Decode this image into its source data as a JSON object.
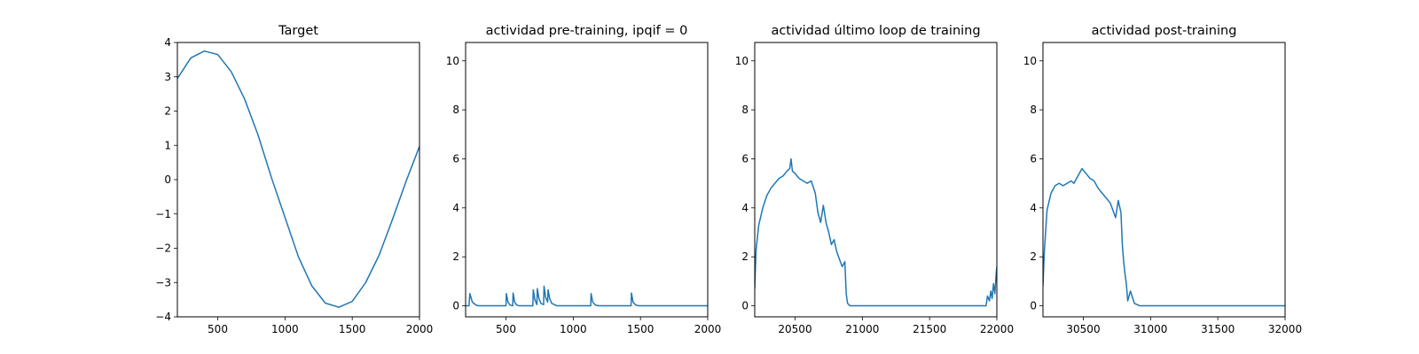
{
  "chart_data": [
    {
      "type": "line",
      "title": "Target",
      "xlim": [
        200,
        2000
      ],
      "ylim": [
        -4,
        4
      ],
      "xticks": [
        500,
        1000,
        1500,
        2000
      ],
      "yticks": [
        -4,
        -3,
        -2,
        -1,
        0,
        1,
        2,
        3,
        4
      ],
      "xtick_labels": [
        "500",
        "1000",
        "1500",
        "2000"
      ],
      "ytick_labels": [
        "−4",
        "−3",
        "−2",
        "−1",
        "0",
        "1",
        "2",
        "3",
        "4"
      ],
      "series": [
        {
          "color": "#1f77b4",
          "x": [
            200,
            300,
            400,
            500,
            600,
            700,
            800,
            900,
            1000,
            1100,
            1200,
            1300,
            1400,
            1500,
            1600,
            1700,
            1800,
            1900,
            2000
          ],
          "y": [
            2.95,
            3.55,
            3.75,
            3.65,
            3.15,
            2.35,
            1.3,
            0.05,
            -1.1,
            -2.25,
            -3.1,
            -3.6,
            -3.72,
            -3.55,
            -3.0,
            -2.2,
            -1.15,
            -0.05,
            0.97
          ]
        }
      ]
    },
    {
      "type": "line",
      "title": "actividad pre-training, ipqif = 0",
      "xlim": [
        200,
        2000
      ],
      "ylim": [
        -0.45,
        10.75
      ],
      "xticks": [
        500,
        1000,
        1500,
        2000
      ],
      "yticks": [
        0,
        2,
        4,
        6,
        8,
        10
      ],
      "xtick_labels": [
        "500",
        "1000",
        "1500",
        "2000"
      ],
      "ytick_labels": [
        "0",
        "2",
        "4",
        "6",
        "8",
        "10"
      ],
      "series": [
        {
          "color": "#1f77b4",
          "x": [
            200,
            225,
            232,
            250,
            280,
            300,
            500,
            503,
            515,
            530,
            550,
            553,
            565,
            580,
            600,
            700,
            703,
            715,
            730,
            733,
            745,
            760,
            780,
            783,
            795,
            810,
            813,
            825,
            840,
            880,
            1130,
            1133,
            1145,
            1165,
            1190,
            1430,
            1433,
            1445,
            1465,
            1490,
            2000
          ],
          "y": [
            0.0,
            0.0,
            0.5,
            0.15,
            0.02,
            0.0,
            0.0,
            0.5,
            0.15,
            0.03,
            0.0,
            0.52,
            0.15,
            0.03,
            0.0,
            0.0,
            0.65,
            0.25,
            0.05,
            0.7,
            0.3,
            0.1,
            0.05,
            0.8,
            0.35,
            0.15,
            0.65,
            0.3,
            0.1,
            0.0,
            0.0,
            0.5,
            0.15,
            0.03,
            0.0,
            0.0,
            0.52,
            0.15,
            0.03,
            0.0,
            0.0
          ]
        }
      ]
    },
    {
      "type": "line",
      "title": "actividad último loop de training",
      "xlim": [
        20200,
        22000
      ],
      "ylim": [
        -0.45,
        10.75
      ],
      "xticks": [
        20500,
        21000,
        21500,
        22000
      ],
      "yticks": [
        0,
        2,
        4,
        6,
        8,
        10
      ],
      "xtick_labels": [
        "20500",
        "21000",
        "21500",
        "22000"
      ],
      "ytick_labels": [
        "0",
        "2",
        "4",
        "6",
        "8",
        "10"
      ],
      "series": [
        {
          "color": "#1f77b4",
          "x": [
            20200,
            20210,
            20230,
            20260,
            20290,
            20320,
            20350,
            20380,
            20410,
            20440,
            20460,
            20470,
            20480,
            20500,
            20530,
            20560,
            20590,
            20620,
            20650,
            20670,
            20690,
            20710,
            20730,
            20750,
            20770,
            20790,
            20810,
            20830,
            20850,
            20870,
            20880,
            20890,
            20910,
            20950,
            21000,
            21500,
            21900,
            21920,
            21930,
            21945,
            21955,
            21965,
            21975,
            21985,
            21995,
            22000
          ],
          "y": [
            0.7,
            2.3,
            3.3,
            4.0,
            4.5,
            4.8,
            5.0,
            5.2,
            5.3,
            5.5,
            5.6,
            6.0,
            5.5,
            5.4,
            5.2,
            5.1,
            5.0,
            5.1,
            4.6,
            3.8,
            3.4,
            4.1,
            3.4,
            3.0,
            2.5,
            2.7,
            2.2,
            1.9,
            1.6,
            1.8,
            0.5,
            0.1,
            0.0,
            0.0,
            0.0,
            0.0,
            0.0,
            0.0,
            0.4,
            0.2,
            0.6,
            0.3,
            0.9,
            0.5,
            1.3,
            1.6
          ]
        }
      ]
    },
    {
      "type": "line",
      "title": "actividad post-training",
      "xlim": [
        30200,
        32000
      ],
      "ylim": [
        -0.45,
        10.75
      ],
      "xticks": [
        30500,
        31000,
        31500,
        32000
      ],
      "yticks": [
        0,
        2,
        4,
        6,
        8,
        10
      ],
      "xtick_labels": [
        "30500",
        "31000",
        "31500",
        "32000"
      ],
      "ytick_labels": [
        "0",
        "2",
        "4",
        "6",
        "8",
        "10"
      ],
      "series": [
        {
          "color": "#1f77b4",
          "x": [
            30200,
            30210,
            30230,
            30260,
            30290,
            30320,
            30350,
            30380,
            30410,
            30430,
            30460,
            30490,
            30520,
            30550,
            30580,
            30610,
            30640,
            30670,
            30700,
            30720,
            30740,
            30760,
            30780,
            30790,
            30800,
            30810,
            30820,
            30830,
            30850,
            30880,
            30920,
            31000,
            32000
          ],
          "y": [
            0.8,
            2.2,
            3.9,
            4.6,
            4.9,
            5.0,
            4.9,
            5.0,
            5.1,
            5.0,
            5.3,
            5.6,
            5.4,
            5.2,
            5.1,
            4.8,
            4.6,
            4.4,
            4.2,
            3.9,
            3.6,
            4.3,
            3.8,
            2.5,
            1.8,
            1.3,
            0.9,
            0.2,
            0.6,
            0.1,
            0.0,
            0.0,
            0.0
          ]
        }
      ]
    }
  ]
}
